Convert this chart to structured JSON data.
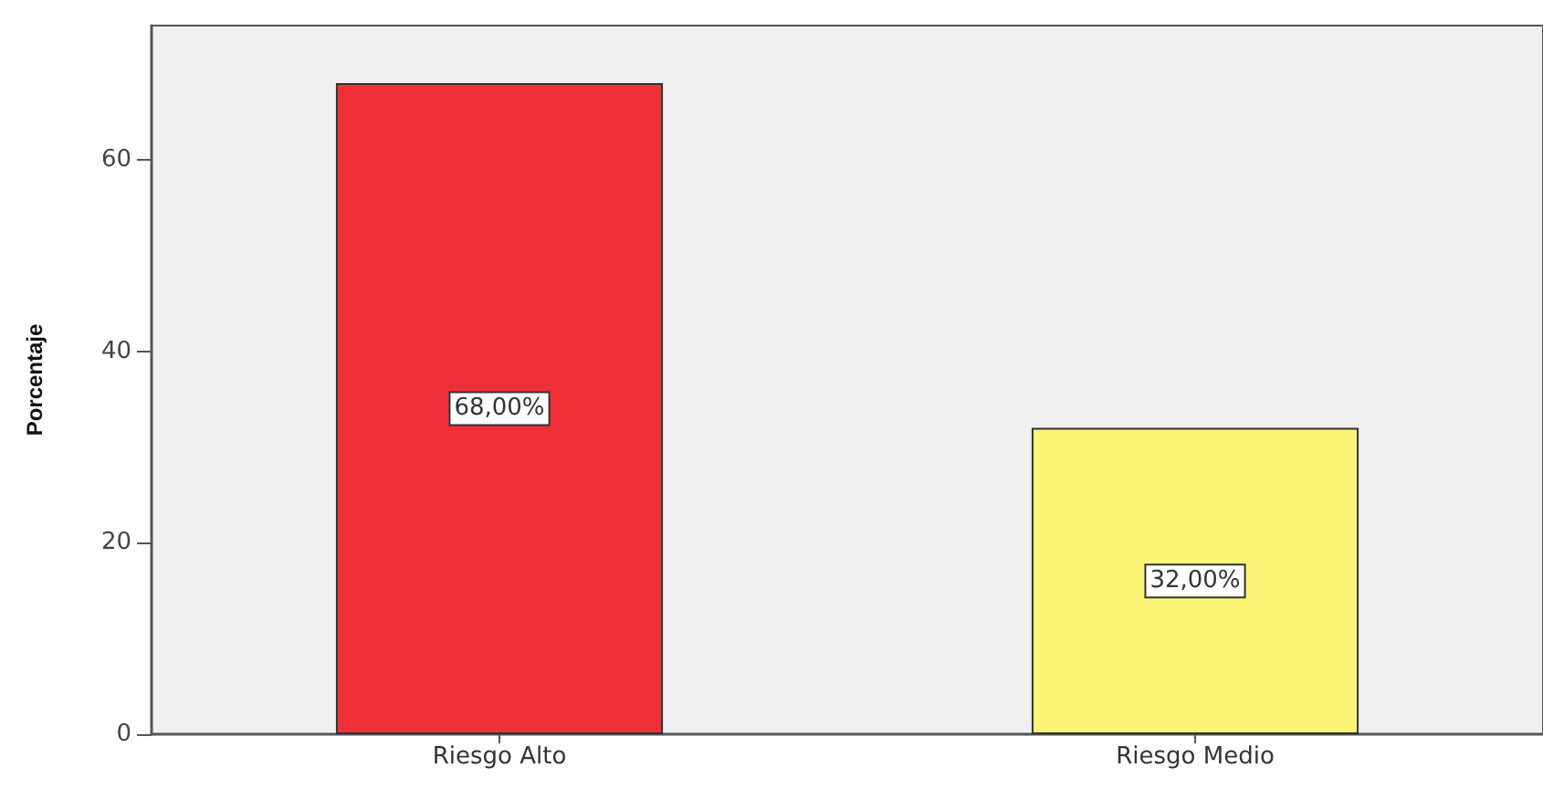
{
  "chart_data": {
    "type": "bar",
    "ylabel": "Porcentaje",
    "categories": [
      "Riesgo Alto",
      "Riesgo Medio"
    ],
    "values": [
      68,
      32
    ],
    "colors": [
      "#ef3038",
      "#fbf677"
    ],
    "value_labels": [
      "68,00%",
      "32,00%"
    ],
    "ylim": [
      0,
      74
    ],
    "yticks": [
      0,
      20,
      40,
      60
    ],
    "grid": false
  }
}
